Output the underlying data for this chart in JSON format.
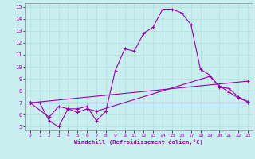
{
  "xlabel": "Windchill (Refroidissement éolien,°C)",
  "bg_color": "#c8eef0",
  "grid_color": "#aaddcc",
  "line_color": "#9900aa",
  "xlim": [
    -0.5,
    23.5
  ],
  "ylim": [
    4.7,
    15.3
  ],
  "xticks": [
    0,
    1,
    2,
    3,
    4,
    5,
    6,
    7,
    8,
    9,
    10,
    11,
    12,
    13,
    14,
    15,
    16,
    17,
    18,
    19,
    20,
    21,
    22,
    23
  ],
  "yticks": [
    5,
    6,
    7,
    8,
    9,
    10,
    11,
    12,
    13,
    14,
    15
  ],
  "line1_x": [
    0,
    1,
    2,
    3,
    4,
    5,
    6,
    7,
    8,
    9,
    10,
    11,
    12,
    13,
    14,
    15,
    16,
    17,
    18,
    19,
    20,
    21,
    22,
    23
  ],
  "line1_y": [
    7.0,
    7.0,
    5.5,
    5.0,
    6.5,
    6.5,
    6.7,
    5.5,
    6.3,
    9.7,
    11.5,
    11.3,
    12.8,
    13.3,
    14.8,
    14.8,
    14.5,
    13.5,
    9.8,
    9.3,
    8.3,
    8.2,
    7.5,
    7.1
  ],
  "line2_x": [
    0,
    2,
    3,
    4,
    5,
    6,
    7,
    19,
    20,
    21,
    22,
    23
  ],
  "line2_y": [
    7.0,
    5.8,
    6.7,
    6.5,
    6.2,
    6.5,
    6.3,
    9.2,
    8.4,
    7.9,
    7.4,
    7.1
  ],
  "line3_x": [
    0,
    23
  ],
  "line3_y": [
    7.0,
    8.8
  ],
  "line4_x": [
    0,
    23
  ],
  "line4_y": [
    7.0,
    7.0
  ]
}
